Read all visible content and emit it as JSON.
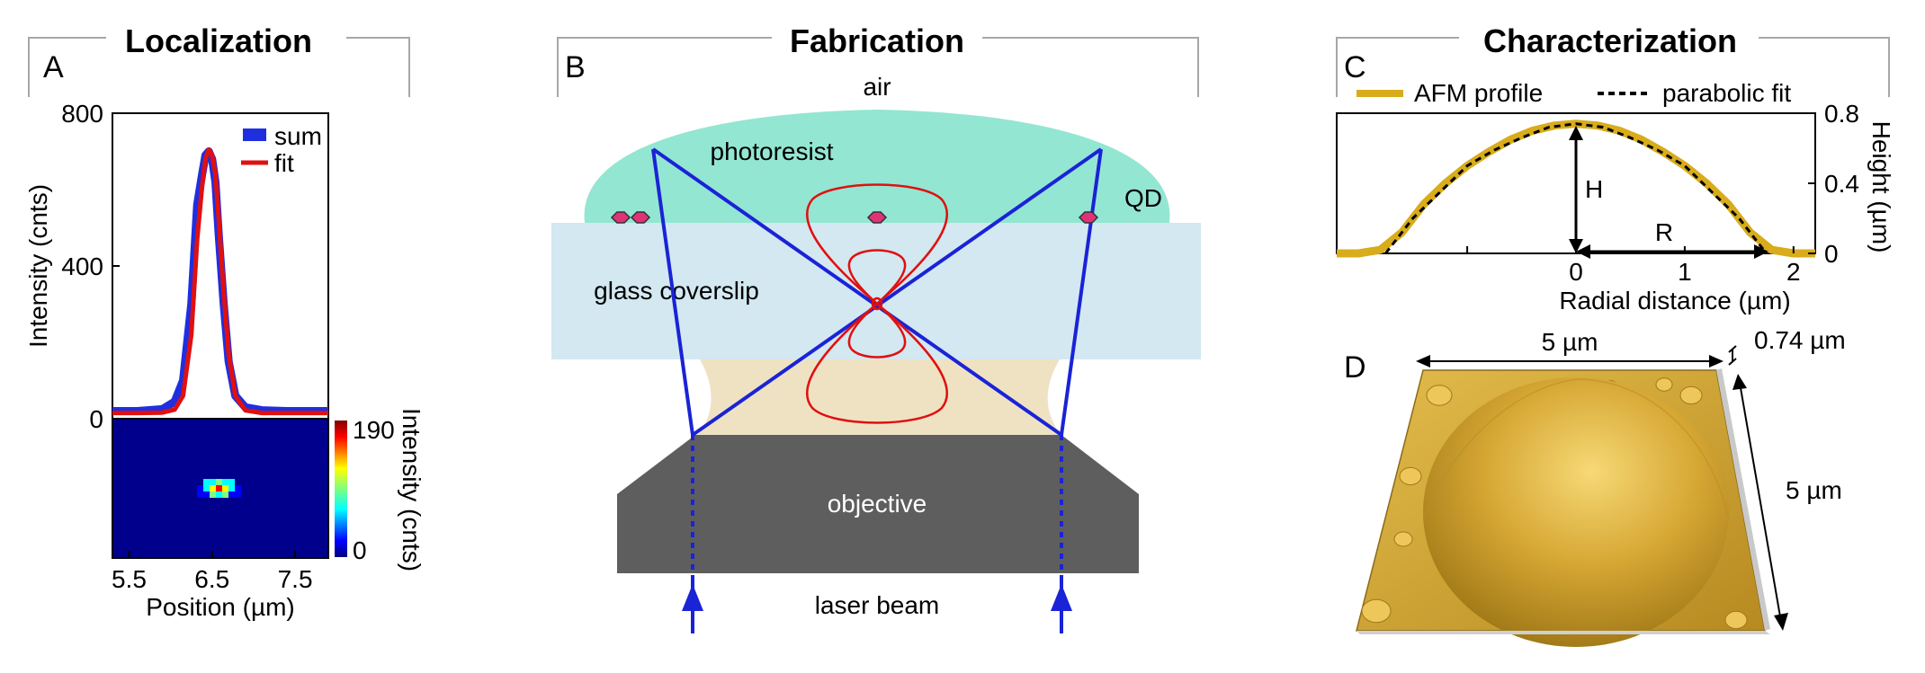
{
  "sections": {
    "localization": "Localization",
    "fabrication": "Fabrication",
    "characterization": "Characterization"
  },
  "panel_letters": {
    "a": "A",
    "b": "B",
    "c": "C",
    "d": "D"
  },
  "colors": {
    "sum": "#1f2fe0",
    "fit": "#e01010",
    "photoresist": "#93e6d2",
    "glass": "#d3e8f1",
    "oil": "#efe2c3",
    "objective": "#5e5e5e",
    "beam": "#1a23d6",
    "qd": "#e0317a",
    "afm": "#d8ac1a",
    "dome": "#d9ad3a"
  },
  "chart_data": [
    {
      "type": "line",
      "title": "Localization",
      "xlabel": "Position (µm)",
      "ylabel": "Intensity (cnts)",
      "xlim": [
        5.3,
        7.9
      ],
      "ylim": [
        0,
        800
      ],
      "xticks": [
        "5.5",
        "6.5",
        "7.5"
      ],
      "xtick_values": [
        5.5,
        6.5,
        7.5
      ],
      "yticks": [
        "0",
        "400",
        "800"
      ],
      "ytick_values": [
        0,
        400,
        800
      ],
      "legend_position": "top-right",
      "series": [
        {
          "name": "sum",
          "x": [
            5.3,
            5.6,
            5.9,
            6.05,
            6.15,
            6.25,
            6.32,
            6.38,
            6.42,
            6.46,
            6.5,
            6.54,
            6.58,
            6.64,
            6.7,
            6.78,
            6.9,
            7.1,
            7.4,
            7.7,
            7.9
          ],
          "y": [
            20,
            20,
            25,
            45,
            100,
            300,
            560,
            640,
            690,
            700,
            680,
            620,
            480,
            300,
            150,
            60,
            30,
            22,
            20,
            20,
            20
          ]
        },
        {
          "name": "fit",
          "x": [
            5.3,
            5.6,
            5.9,
            6.05,
            6.15,
            6.25,
            6.32,
            6.38,
            6.42,
            6.46,
            6.5,
            6.54,
            6.58,
            6.64,
            6.7,
            6.78,
            6.9,
            7.1,
            7.4,
            7.7,
            7.9
          ],
          "y": [
            15,
            15,
            16,
            24,
            60,
            220,
            470,
            610,
            680,
            705,
            690,
            640,
            520,
            330,
            170,
            60,
            22,
            15,
            15,
            15,
            15
          ]
        }
      ]
    },
    {
      "type": "heatmap",
      "colorbar_label": "Intensity (cnts)",
      "colorbar_ticks": [
        "190",
        "0"
      ],
      "vmin": 0,
      "vmax": 190
    },
    {
      "type": "line",
      "xlabel": "Radial distance (µm)",
      "ylabel": "Height (µm)",
      "xlim": [
        -2.2,
        2.2
      ],
      "ylim": [
        0,
        0.8
      ],
      "xticks": [
        "0",
        "1",
        "2"
      ],
      "xtick_values": [
        0,
        1,
        2
      ],
      "yticks": [
        "0.8",
        "0.4",
        "0"
      ],
      "ytick_values": [
        0.8,
        0.4,
        0
      ],
      "legend_position": "top",
      "series": [
        {
          "name": "AFM profile",
          "x": [
            -2.2,
            -2.0,
            -1.8,
            -1.6,
            -1.4,
            -1.2,
            -1.0,
            -0.8,
            -0.6,
            -0.4,
            -0.2,
            0,
            0.2,
            0.4,
            0.6,
            0.8,
            1.0,
            1.2,
            1.4,
            1.6,
            1.8,
            2.0,
            2.2
          ],
          "y": [
            0.0,
            0.0,
            0.02,
            0.12,
            0.28,
            0.4,
            0.5,
            0.58,
            0.65,
            0.7,
            0.73,
            0.74,
            0.73,
            0.7,
            0.65,
            0.58,
            0.5,
            0.4,
            0.28,
            0.12,
            0.02,
            0.0,
            0.0
          ]
        },
        {
          "name": "parabolic fit",
          "x": [
            -1.75,
            -1.5,
            -1.25,
            -1.0,
            -0.75,
            -0.5,
            -0.25,
            0,
            0.25,
            0.5,
            0.75,
            1.0,
            1.25,
            1.5,
            1.75
          ],
          "y": [
            0.0,
            0.2,
            0.35,
            0.5,
            0.59,
            0.66,
            0.72,
            0.74,
            0.72,
            0.66,
            0.59,
            0.5,
            0.35,
            0.2,
            0.0
          ]
        }
      ],
      "annotations": [
        "H",
        "R"
      ]
    }
  ],
  "diagram": {
    "air": "air",
    "photoresist": "photoresist",
    "qd": "QD",
    "glass": "glass coverslip",
    "objective": "objective",
    "laser": "laser beam"
  },
  "afm3d": {
    "width": "5 µm",
    "depth": "5 µm",
    "height": "0.74 µm"
  }
}
